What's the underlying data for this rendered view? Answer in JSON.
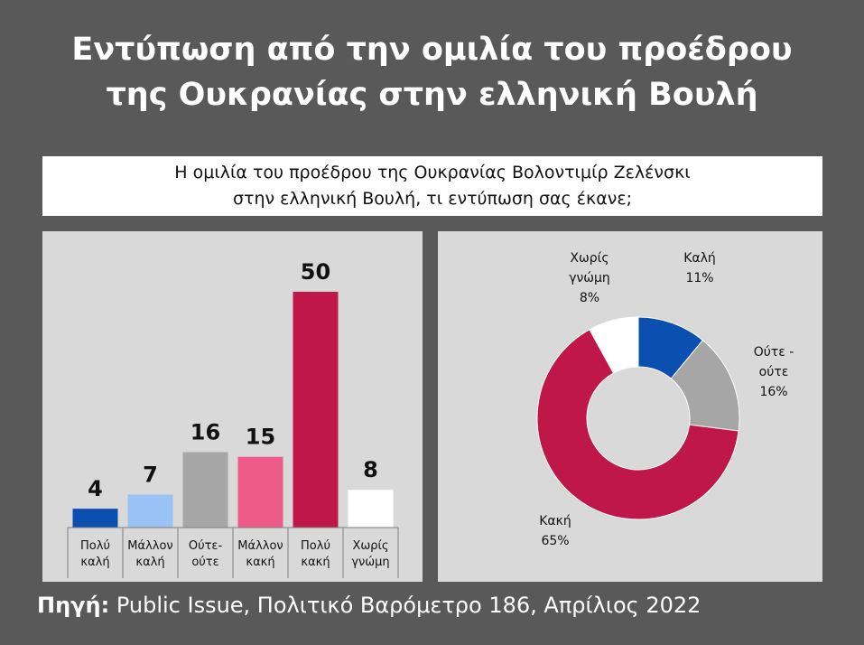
{
  "title_line1": "Εντύπωση από την ομιλία του προέδρου",
  "title_line2": "της Ουκρανίας στην ελληνική Βουλή",
  "question_line1": "Η ομιλία του προέδρου της Ουκρανίας Βολοντιμίρ Ζελένσκι",
  "question_line2": "στην ελληνική Βουλή, τι εντύπωση σας έκανε;",
  "source_label": "Πηγή:",
  "source_text": " Public Issue, Πολιτικό Βαρόμετρο 186, Απρίλιος 2022",
  "chart_data": [
    {
      "type": "bar",
      "categories": [
        [
          "Πολύ",
          "καλή"
        ],
        [
          "Μάλλον",
          "καλή"
        ],
        [
          "Ούτε-",
          "ούτε"
        ],
        [
          "Μάλλον",
          "κακή"
        ],
        [
          "Πολύ",
          "κακή"
        ],
        [
          "Χωρίς",
          "γνώμη"
        ]
      ],
      "values": [
        4,
        7,
        16,
        15,
        50,
        8
      ],
      "colors": [
        "#0b4fb0",
        "#99c2f5",
        "#a6a6a6",
        "#ee5a8a",
        "#c0174a",
        "#ffffff"
      ],
      "ylim": [
        0,
        50
      ]
    },
    {
      "type": "pie",
      "donut": true,
      "slices": [
        {
          "label": [
            "Καλή"
          ],
          "value": 11,
          "pct": "11%",
          "color": "#0b4fb0"
        },
        {
          "label": [
            "Ούτε -",
            "ούτε"
          ],
          "value": 16,
          "pct": "16%",
          "color": "#a6a6a6"
        },
        {
          "label": [
            "Κακή"
          ],
          "value": 65,
          "pct": "65%",
          "color": "#c0174a"
        },
        {
          "label": [
            "Χωρίς",
            "γνώμη"
          ],
          "value": 8,
          "pct": "8%",
          "color": "#ffffff"
        }
      ]
    }
  ]
}
